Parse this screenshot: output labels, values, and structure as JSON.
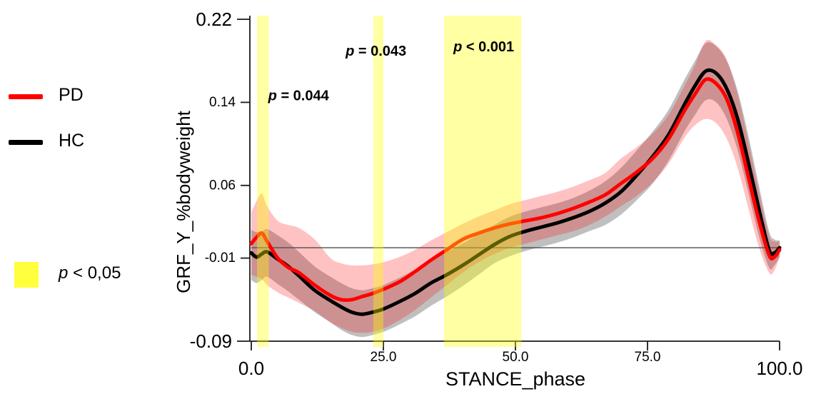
{
  "legend": {
    "series": [
      {
        "label": "PD",
        "color": "#ff0000"
      },
      {
        "label": "HC",
        "color": "#000000"
      }
    ],
    "significance": {
      "symbol": "p",
      "text": " < 0,05",
      "color": "#ffff3d"
    }
  },
  "chart_data": {
    "type": "line",
    "title": "",
    "xlabel": "STANCE_phase",
    "ylabel": "GRF_Y_%bodyweight",
    "xlim": [
      0,
      100
    ],
    "ylim": [
      -0.09,
      0.22
    ],
    "grid": false,
    "zero_line": 0.0,
    "x_ticks": [
      {
        "value": 0,
        "label": "0.0",
        "size": "lg"
      },
      {
        "value": 25,
        "label": "25.0",
        "size": "sm"
      },
      {
        "value": 50,
        "label": "50.0",
        "size": "sm"
      },
      {
        "value": 75,
        "label": "75.0",
        "size": "sm"
      },
      {
        "value": 100,
        "label": "100.0",
        "size": "lg"
      }
    ],
    "y_ticks": [
      {
        "value": 0.22,
        "label": "0.22",
        "size": "lg"
      },
      {
        "value": 0.14,
        "label": "0.14",
        "size": "sm"
      },
      {
        "value": 0.06,
        "label": "0.06",
        "size": "sm"
      },
      {
        "value": -0.01,
        "label": "-0.01",
        "size": "sm"
      },
      {
        "value": -0.09,
        "label": "-0.09",
        "size": "lg"
      }
    ],
    "x": [
      0,
      1,
      2,
      3,
      5,
      7,
      9,
      12,
      15,
      17,
      19,
      21,
      23,
      25,
      28,
      31,
      34,
      37,
      40,
      43,
      46,
      49,
      52,
      55,
      58,
      61,
      64,
      67,
      70,
      73,
      76,
      79,
      82,
      84,
      86,
      88,
      90,
      92,
      94,
      96,
      98,
      99,
      100
    ],
    "series": [
      {
        "name": "PD",
        "color": "#ff0000",
        "band_color": "rgba(255,0,0,0.24)",
        "mean": [
          0.004,
          0.01,
          0.014,
          0.006,
          -0.01,
          -0.019,
          -0.024,
          -0.036,
          -0.046,
          -0.05,
          -0.05,
          -0.047,
          -0.044,
          -0.04,
          -0.033,
          -0.023,
          -0.012,
          -0.002,
          0.008,
          0.014,
          0.019,
          0.023,
          0.026,
          0.029,
          0.033,
          0.038,
          0.044,
          0.051,
          0.062,
          0.073,
          0.086,
          0.105,
          0.132,
          0.148,
          0.162,
          0.158,
          0.143,
          0.112,
          0.07,
          0.028,
          -0.007,
          -0.009,
          -0.002
        ],
        "upper": [
          0.034,
          0.045,
          0.052,
          0.04,
          0.026,
          0.022,
          0.019,
          0.008,
          -0.01,
          -0.015,
          -0.017,
          -0.017,
          -0.016,
          -0.014,
          -0.009,
          -0.002,
          0.007,
          0.015,
          0.023,
          0.03,
          0.036,
          0.042,
          0.046,
          0.05,
          0.054,
          0.059,
          0.065,
          0.072,
          0.086,
          0.097,
          0.11,
          0.128,
          0.156,
          0.176,
          0.199,
          0.195,
          0.181,
          0.149,
          0.104,
          0.056,
          0.012,
          0.006,
          0.006
        ],
        "lower": [
          -0.026,
          -0.028,
          -0.03,
          -0.036,
          -0.043,
          -0.048,
          -0.053,
          -0.061,
          -0.072,
          -0.077,
          -0.081,
          -0.082,
          -0.081,
          -0.078,
          -0.07,
          -0.06,
          -0.048,
          -0.036,
          -0.024,
          -0.014,
          -0.006,
          0.0,
          0.004,
          0.008,
          0.012,
          0.016,
          0.022,
          0.03,
          0.04,
          0.05,
          0.063,
          0.081,
          0.106,
          0.118,
          0.124,
          0.12,
          0.105,
          0.078,
          0.04,
          0.002,
          -0.024,
          -0.022,
          -0.009
        ]
      },
      {
        "name": "HC",
        "color": "#000000",
        "band_color": "rgba(0,0,0,0.25)",
        "mean": [
          -0.005,
          -0.009,
          -0.006,
          -0.004,
          -0.011,
          -0.018,
          -0.027,
          -0.041,
          -0.051,
          -0.057,
          -0.062,
          -0.064,
          -0.062,
          -0.059,
          -0.052,
          -0.044,
          -0.034,
          -0.026,
          -0.017,
          -0.007,
          0.003,
          0.011,
          0.016,
          0.02,
          0.024,
          0.029,
          0.035,
          0.043,
          0.054,
          0.07,
          0.088,
          0.109,
          0.138,
          0.156,
          0.17,
          0.168,
          0.153,
          0.125,
          0.084,
          0.039,
          -0.002,
          -0.005,
          0.0
        ],
        "upper": [
          0.017,
          0.015,
          0.016,
          0.018,
          0.012,
          0.005,
          -0.004,
          -0.018,
          -0.028,
          -0.034,
          -0.039,
          -0.041,
          -0.039,
          -0.036,
          -0.029,
          -0.021,
          -0.012,
          -0.004,
          0.004,
          0.013,
          0.022,
          0.03,
          0.035,
          0.039,
          0.043,
          0.048,
          0.055,
          0.064,
          0.077,
          0.094,
          0.112,
          0.133,
          0.162,
          0.18,
          0.197,
          0.194,
          0.18,
          0.152,
          0.11,
          0.062,
          0.016,
          0.008,
          0.007
        ],
        "lower": [
          -0.031,
          -0.034,
          -0.031,
          -0.028,
          -0.035,
          -0.042,
          -0.05,
          -0.062,
          -0.072,
          -0.079,
          -0.084,
          -0.086,
          -0.084,
          -0.081,
          -0.074,
          -0.066,
          -0.056,
          -0.047,
          -0.037,
          -0.026,
          -0.015,
          -0.008,
          -0.003,
          0.001,
          0.005,
          0.01,
          0.016,
          0.022,
          0.032,
          0.046,
          0.062,
          0.084,
          0.112,
          0.128,
          0.142,
          0.14,
          0.124,
          0.095,
          0.055,
          0.013,
          -0.019,
          -0.017,
          -0.009
        ]
      }
    ],
    "significant_regions": [
      {
        "x_start": 1.1,
        "x_end": 3.3,
        "p_value": "p = 0.044",
        "color": "rgba(255,255,0,0.36)"
      },
      {
        "x_start": 23.1,
        "x_end": 25.0,
        "p_value": "p = 0.043",
        "color": "rgba(255,255,0,0.36)"
      },
      {
        "x_start": 36.5,
        "x_end": 51.1,
        "p_value": "p < 0.001",
        "color": "rgba(255,255,0,0.36)"
      }
    ],
    "annotations": [
      {
        "symbol": "p",
        "text": " = 0.044",
        "x": 3.2,
        "y": 0.142,
        "anchor": "start"
      },
      {
        "symbol": "p",
        "text": " = 0.043",
        "x": 23.6,
        "y": 0.185,
        "anchor": "middle"
      },
      {
        "symbol": "p",
        "text": " < 0.001",
        "x": 44.0,
        "y": 0.189,
        "anchor": "middle"
      }
    ]
  }
}
